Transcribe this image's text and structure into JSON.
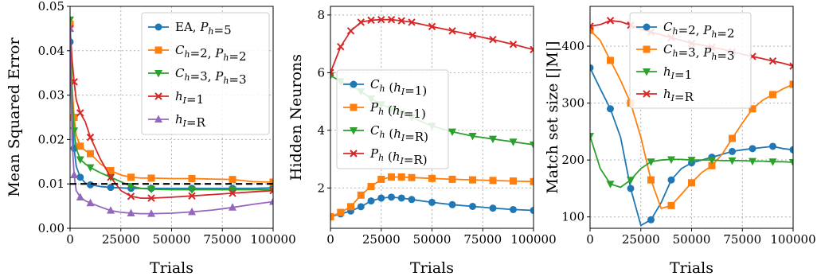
{
  "chart_data": [
    {
      "type": "line",
      "xlabel": "Trials",
      "ylabel": "Mean Squared Error",
      "xlim": [
        0,
        100000
      ],
      "ylim": [
        0,
        0.05
      ],
      "xticks": [
        0,
        25000,
        50000,
        75000,
        100000
      ],
      "xtick_labels": [
        "0",
        "25000",
        "50000",
        "75000",
        "100000"
      ],
      "yticks": [
        0,
        0.01,
        0.02,
        0.03,
        0.04,
        0.05
      ],
      "ytick_labels": [
        "0.00",
        "0.01",
        "0.02",
        "0.03",
        "0.04",
        "0.05"
      ],
      "grid": true,
      "legend_position": "top-right",
      "reference_line": {
        "y": 0.01,
        "style": "dashed",
        "color": "#000000"
      },
      "x": [
        0,
        1000,
        2000,
        3000,
        5000,
        7500,
        10000,
        15000,
        20000,
        25000,
        30000,
        35000,
        40000,
        50000,
        60000,
        70000,
        80000,
        90000,
        100000
      ],
      "series": [
        {
          "name": "EA, P_h=5",
          "label_parts": [
            [
              "EA, ",
              ""
            ],
            [
              "P",
              "it"
            ],
            [
              "h",
              "sub"
            ],
            [
              "=5",
              ""
            ]
          ],
          "color": "#1f77b4",
          "marker": "circle",
          "values": [
            0.042,
            0.025,
            0.018,
            0.014,
            0.0115,
            0.0102,
            0.0098,
            0.0094,
            0.0092,
            0.0091,
            0.009,
            0.009,
            0.009,
            0.009,
            0.009,
            0.009,
            0.009,
            0.009,
            0.0091
          ]
        },
        {
          "name": "C_h=2, P_h=2",
          "label_parts": [
            [
              "C",
              "it"
            ],
            [
              "h",
              "sub"
            ],
            [
              "=2, ",
              ""
            ],
            [
              "P",
              "it"
            ],
            [
              "h",
              "sub"
            ],
            [
              "=2",
              ""
            ]
          ],
          "color": "#ff7f0e",
          "marker": "square",
          "values": [
            0.046,
            0.032,
            0.025,
            0.021,
            0.0185,
            0.0175,
            0.0168,
            0.0145,
            0.013,
            0.012,
            0.0115,
            0.0113,
            0.0113,
            0.0112,
            0.0112,
            0.0111,
            0.011,
            0.0105,
            0.0104
          ]
        },
        {
          "name": "C_h=3, P_h=3",
          "label_parts": [
            [
              "C",
              "it"
            ],
            [
              "h",
              "sub"
            ],
            [
              "=3, ",
              ""
            ],
            [
              "P",
              "it"
            ],
            [
              "h",
              "sub"
            ],
            [
              "=3",
              ""
            ]
          ],
          "color": "#2ca02c",
          "marker": "triangle-down",
          "values": [
            0.047,
            0.03,
            0.022,
            0.018,
            0.0155,
            0.0145,
            0.0137,
            0.0125,
            0.0115,
            0.0105,
            0.0095,
            0.009,
            0.0088,
            0.0087,
            0.0087,
            0.0087,
            0.0087,
            0.0087,
            0.0087
          ]
        },
        {
          "name": "h_I=1",
          "label_parts": [
            [
              "h",
              "it"
            ],
            [
              "I",
              "sub"
            ],
            [
              "=1",
              ""
            ]
          ],
          "color": "#d62728",
          "marker": "x",
          "values": [
            0.045,
            0.038,
            0.033,
            0.029,
            0.026,
            0.024,
            0.0205,
            0.0155,
            0.0115,
            0.0085,
            0.0072,
            0.0068,
            0.0068,
            0.007,
            0.0073,
            0.0076,
            0.0079,
            0.0082,
            0.0085
          ]
        },
        {
          "name": "h_I=R",
          "label_parts": [
            [
              "h",
              "it"
            ],
            [
              "I",
              "sub"
            ],
            [
              "=R",
              ""
            ]
          ],
          "color": "#9467bd",
          "marker": "triangle-up",
          "values": [
            0.045,
            0.02,
            0.012,
            0.0085,
            0.007,
            0.0062,
            0.0057,
            0.0048,
            0.004,
            0.0036,
            0.0034,
            0.0033,
            0.0033,
            0.0034,
            0.0037,
            0.0041,
            0.0047,
            0.0054,
            0.006
          ]
        }
      ]
    },
    {
      "type": "line",
      "xlabel": "Trials",
      "ylabel": "Hidden Neurons",
      "xlim": [
        0,
        100000
      ],
      "ylim": [
        0.6,
        8.3
      ],
      "xticks": [
        0,
        25000,
        50000,
        75000,
        100000
      ],
      "xtick_labels": [
        "0",
        "25000",
        "50000",
        "75000",
        "100000"
      ],
      "yticks": [
        2,
        4,
        6,
        8
      ],
      "ytick_labels": [
        "2",
        "4",
        "6",
        "8"
      ],
      "grid": true,
      "legend_position": "center-left",
      "x": [
        0,
        5000,
        10000,
        15000,
        20000,
        25000,
        30000,
        35000,
        40000,
        50000,
        60000,
        70000,
        80000,
        90000,
        100000
      ],
      "series": [
        {
          "name": "C_h (h_I=1)",
          "label_parts": [
            [
              "C",
              "it"
            ],
            [
              "h",
              "sub"
            ],
            [
              " (",
              ""
            ],
            [
              "h",
              "it"
            ],
            [
              "I",
              "sub"
            ],
            [
              "=1)",
              ""
            ]
          ],
          "color": "#1f77b4",
          "marker": "circle",
          "values": [
            1.0,
            1.1,
            1.2,
            1.35,
            1.55,
            1.65,
            1.68,
            1.65,
            1.6,
            1.5,
            1.42,
            1.36,
            1.3,
            1.25,
            1.22
          ]
        },
        {
          "name": "P_h (h_I=1)",
          "label_parts": [
            [
              "P",
              "it"
            ],
            [
              "h",
              "sub"
            ],
            [
              " (",
              ""
            ],
            [
              "h",
              "it"
            ],
            [
              "I",
              "sub"
            ],
            [
              "=1)",
              ""
            ]
          ],
          "color": "#ff7f0e",
          "marker": "square",
          "values": [
            1.0,
            1.15,
            1.35,
            1.75,
            2.05,
            2.3,
            2.38,
            2.38,
            2.36,
            2.33,
            2.3,
            2.28,
            2.26,
            2.24,
            2.22
          ]
        },
        {
          "name": "C_h (h_I=R)",
          "label_parts": [
            [
              "C",
              "it"
            ],
            [
              "h",
              "sub"
            ],
            [
              " (",
              ""
            ],
            [
              "h",
              "it"
            ],
            [
              "I",
              "sub"
            ],
            [
              "=R)",
              ""
            ]
          ],
          "color": "#2ca02c",
          "marker": "triangle-down",
          "values": [
            5.9,
            5.7,
            5.55,
            5.35,
            5.1,
            4.9,
            4.75,
            4.6,
            4.45,
            4.15,
            3.95,
            3.8,
            3.7,
            3.6,
            3.5
          ]
        },
        {
          "name": "P_h (h_I=R)",
          "label_parts": [
            [
              "P",
              "it"
            ],
            [
              "h",
              "sub"
            ],
            [
              " (",
              ""
            ],
            [
              "h",
              "it"
            ],
            [
              "I",
              "sub"
            ],
            [
              "=R)",
              ""
            ]
          ],
          "color": "#d62728",
          "marker": "x",
          "values": [
            6.0,
            6.9,
            7.45,
            7.75,
            7.82,
            7.84,
            7.84,
            7.8,
            7.75,
            7.6,
            7.45,
            7.3,
            7.15,
            6.98,
            6.8
          ]
        }
      ]
    },
    {
      "type": "line",
      "xlabel": "Trials",
      "ylabel": "Match set size [|M|]",
      "xlim": [
        0,
        100000
      ],
      "ylim": [
        80,
        470
      ],
      "xticks": [
        0,
        25000,
        50000,
        75000,
        100000
      ],
      "xtick_labels": [
        "0",
        "25000",
        "50000",
        "75000",
        "100000"
      ],
      "yticks": [
        100,
        200,
        300,
        400
      ],
      "ytick_labels": [
        "100",
        "200",
        "300",
        "400"
      ],
      "grid": true,
      "legend_position": "top-right",
      "x": [
        0,
        5000,
        10000,
        15000,
        20000,
        25000,
        30000,
        35000,
        40000,
        45000,
        50000,
        55000,
        60000,
        65000,
        70000,
        75000,
        80000,
        85000,
        90000,
        95000,
        100000
      ],
      "series": [
        {
          "name": "C_h=2, P_h=2",
          "label_parts": [
            [
              "C",
              "it"
            ],
            [
              "h",
              "sub"
            ],
            [
              "=2, ",
              ""
            ],
            [
              "P",
              "it"
            ],
            [
              "h",
              "sub"
            ],
            [
              "=2",
              ""
            ]
          ],
          "color": "#1f77b4",
          "marker": "circle",
          "values": [
            362,
            325,
            290,
            240,
            150,
            85,
            95,
            125,
            165,
            185,
            195,
            200,
            205,
            210,
            215,
            218,
            220,
            222,
            224,
            220,
            218
          ]
        },
        {
          "name": "C_h=3, P_h=3",
          "label_parts": [
            [
              "C",
              "it"
            ],
            [
              "h",
              "sub"
            ],
            [
              "=3, ",
              ""
            ],
            [
              "P",
              "it"
            ],
            [
              "h",
              "sub"
            ],
            [
              "=3",
              ""
            ]
          ],
          "color": "#ff7f0e",
          "marker": "square",
          "values": [
            428,
            410,
            375,
            340,
            300,
            240,
            165,
            115,
            120,
            140,
            160,
            178,
            190,
            210,
            238,
            265,
            290,
            305,
            315,
            325,
            333
          ]
        },
        {
          "name": "h_I=1",
          "label_parts": [
            [
              "h",
              "it"
            ],
            [
              "I",
              "sub"
            ],
            [
              "=1",
              ""
            ]
          ],
          "color": "#2ca02c",
          "marker": "triangle-down",
          "values": [
            242,
            185,
            158,
            152,
            165,
            185,
            197,
            200,
            201,
            201,
            200,
            200,
            200,
            199,
            199,
            199,
            198,
            198,
            197,
            197,
            196
          ]
        },
        {
          "name": "h_I=R",
          "label_parts": [
            [
              "h",
              "it"
            ],
            [
              "I",
              "sub"
            ],
            [
              "=R",
              ""
            ]
          ],
          "color": "#d62728",
          "marker": "x",
          "values": [
            435,
            438,
            445,
            443,
            437,
            430,
            425,
            420,
            415,
            410,
            405,
            402,
            398,
            395,
            390,
            386,
            382,
            378,
            374,
            370,
            365
          ]
        }
      ]
    }
  ]
}
